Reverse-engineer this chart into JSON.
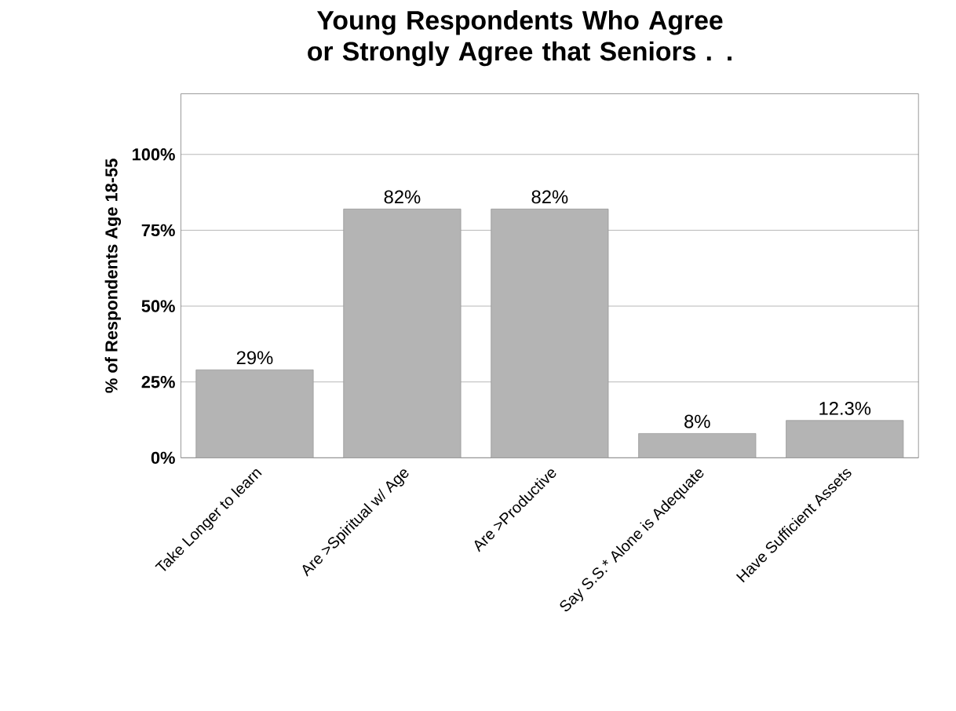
{
  "chart_data": {
    "type": "bar",
    "title": "Young Respondents Who Agree or Strongly Agree that Seniors . .",
    "ylabel": "% of Respondents Age 18-55",
    "categories": [
      "Take Longer to learn",
      "Are >Spiritual w/ Age",
      "Are >Productive",
      "Say S.S.* Alone is Adequate",
      "Have Sufficient Assets"
    ],
    "values": [
      29,
      82,
      82,
      8,
      12.3
    ],
    "value_labels": [
      "29%",
      "82%",
      "82%",
      "8%",
      "12.3%"
    ],
    "color": "#b4b4b4",
    "ylim": [
      0,
      120
    ],
    "yticks": [
      {
        "value": 0,
        "label": "0%"
      },
      {
        "value": 25,
        "label": "25%"
      },
      {
        "value": 50,
        "label": "50%"
      },
      {
        "value": 75,
        "label": "75%"
      },
      {
        "value": 100,
        "label": "100%"
      }
    ],
    "grid": "y"
  }
}
